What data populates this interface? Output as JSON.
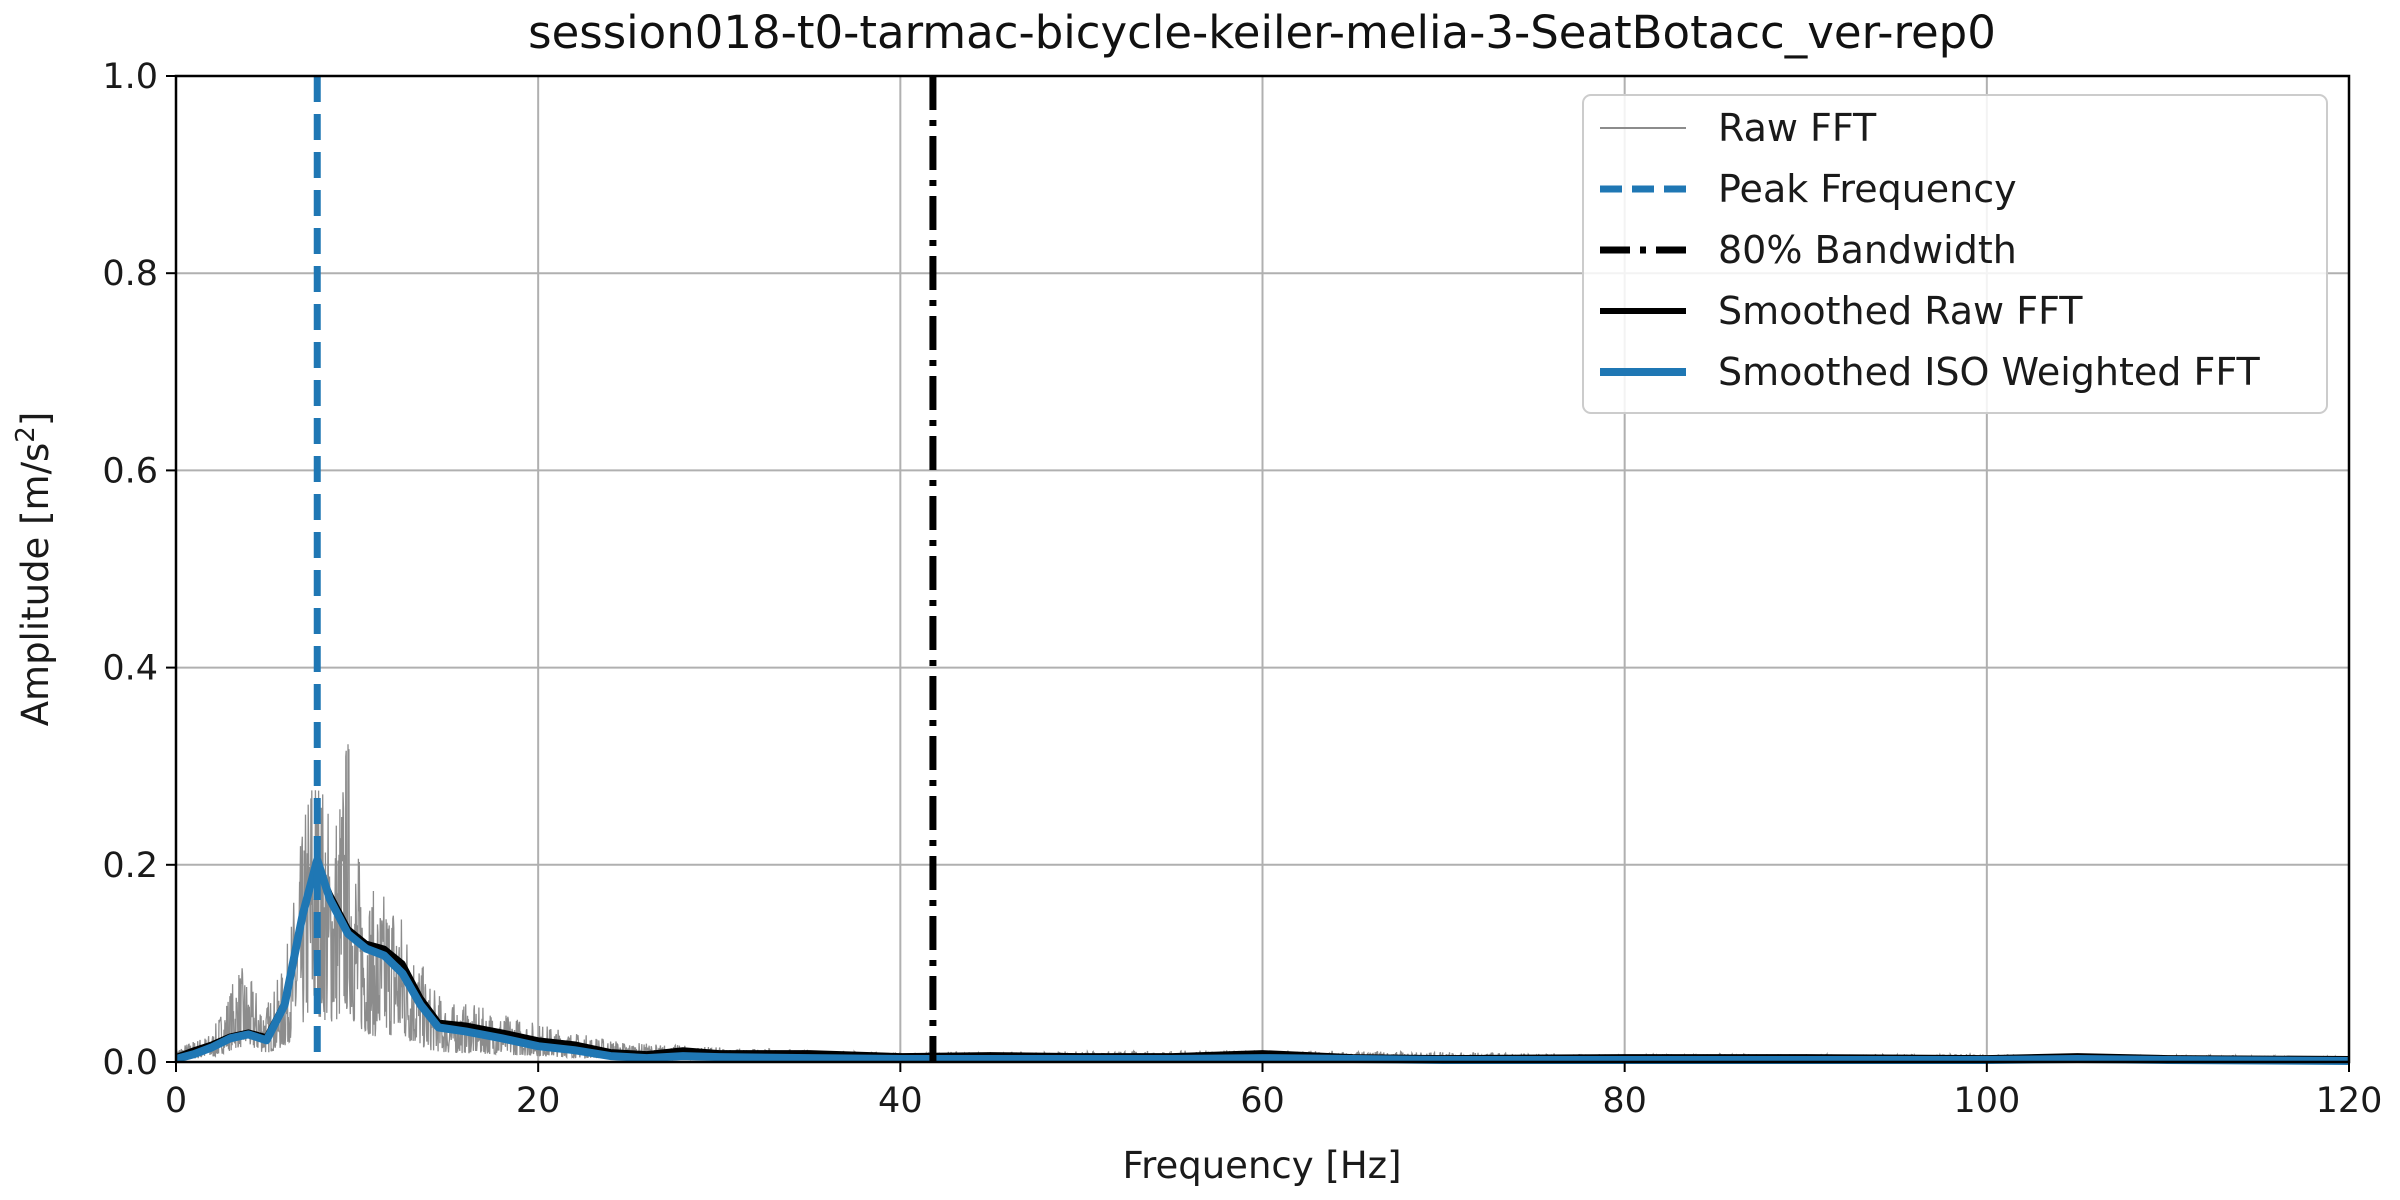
{
  "chart_data": {
    "type": "line",
    "title": "session018-t0-tarmac-bicycle-keiler-melia-3-SeatBotacc_ver-rep0",
    "xlabel": "Frequency [Hz]",
    "ylabel_main": "Amplitude [m/s",
    "ylabel_sup": "2",
    "ylabel_end": "]",
    "xlim": [
      0,
      120
    ],
    "ylim": [
      0,
      1.0
    ],
    "x_ticks": [
      0,
      20,
      40,
      60,
      80,
      100,
      120
    ],
    "x_tick_labels": [
      "0",
      "20",
      "40",
      "60",
      "80",
      "100",
      "120"
    ],
    "y_ticks": [
      0.0,
      0.2,
      0.4,
      0.6,
      0.8,
      1.0
    ],
    "y_tick_labels": [
      "0.0",
      "0.2",
      "0.4",
      "0.6",
      "0.8",
      "1.0"
    ],
    "grid": true,
    "legend_position": "top-right",
    "colors": {
      "raw": "#8c8c8c",
      "peak": "#1f77b4",
      "bandwidth": "#000000",
      "smoothed_raw": "#000000",
      "smoothed_iso": "#1f77b4"
    },
    "peak_frequency": 7.8,
    "bandwidth_80": 41.8,
    "smoothed_raw_fft": {
      "x": [
        0,
        1,
        2,
        3,
        4,
        5,
        6,
        7,
        7.8,
        8.5,
        9.5,
        10.5,
        11.5,
        12.5,
        13.5,
        14.5,
        16,
        18,
        20,
        22,
        24,
        26,
        28,
        30,
        35,
        40,
        45,
        50,
        55,
        60,
        65,
        70,
        80,
        90,
        100,
        105,
        110,
        120
      ],
      "y": [
        0.005,
        0.012,
        0.018,
        0.026,
        0.03,
        0.025,
        0.06,
        0.15,
        0.2,
        0.17,
        0.135,
        0.12,
        0.115,
        0.1,
        0.065,
        0.04,
        0.037,
        0.03,
        0.022,
        0.018,
        0.01,
        0.008,
        0.012,
        0.009,
        0.009,
        0.006,
        0.007,
        0.006,
        0.006,
        0.009,
        0.005,
        0.004,
        0.005,
        0.005,
        0.004,
        0.006,
        0.004,
        0.003
      ]
    },
    "smoothed_iso_fft": {
      "x": [
        0,
        1,
        2,
        3,
        4,
        5,
        6,
        7,
        7.8,
        8.5,
        9.5,
        10.5,
        11.5,
        12.5,
        13.5,
        14.5,
        16,
        18,
        20,
        22,
        24,
        26,
        28,
        30,
        35,
        40,
        45,
        50,
        55,
        60,
        65,
        70,
        80,
        90,
        100,
        105,
        110,
        120
      ],
      "y": [
        0.003,
        0.008,
        0.015,
        0.024,
        0.028,
        0.022,
        0.058,
        0.15,
        0.205,
        0.165,
        0.13,
        0.115,
        0.108,
        0.09,
        0.058,
        0.035,
        0.031,
        0.024,
        0.016,
        0.012,
        0.006,
        0.004,
        0.006,
        0.005,
        0.004,
        0.003,
        0.003,
        0.003,
        0.003,
        0.004,
        0.003,
        0.002,
        0.002,
        0.002,
        0.002,
        0.003,
        0.002,
        0.001
      ]
    },
    "raw_fft_envelope": {
      "x": [
        0,
        2,
        3.5,
        5,
        6,
        7,
        7.5,
        8,
        8.5,
        9,
        9.5,
        10,
        11,
        12,
        13,
        14,
        15,
        16,
        18,
        20,
        22,
        25,
        30,
        35,
        40,
        60,
        80,
        100,
        120
      ],
      "y": [
        0.015,
        0.03,
        0.1,
        0.06,
        0.1,
        0.24,
        0.33,
        0.3,
        0.26,
        0.28,
        0.35,
        0.22,
        0.17,
        0.18,
        0.13,
        0.08,
        0.06,
        0.06,
        0.05,
        0.04,
        0.03,
        0.02,
        0.015,
        0.012,
        0.01,
        0.012,
        0.008,
        0.008,
        0.006
      ]
    },
    "legend": [
      {
        "label": "Raw FFT",
        "style": "raw"
      },
      {
        "label": "Peak Frequency",
        "style": "peak"
      },
      {
        "label": "80% Bandwidth",
        "style": "bandwidth"
      },
      {
        "label": "Smoothed Raw FFT",
        "style": "smoothed_raw"
      },
      {
        "label": "Smoothed ISO Weighted FFT",
        "style": "smoothed_iso"
      }
    ]
  }
}
